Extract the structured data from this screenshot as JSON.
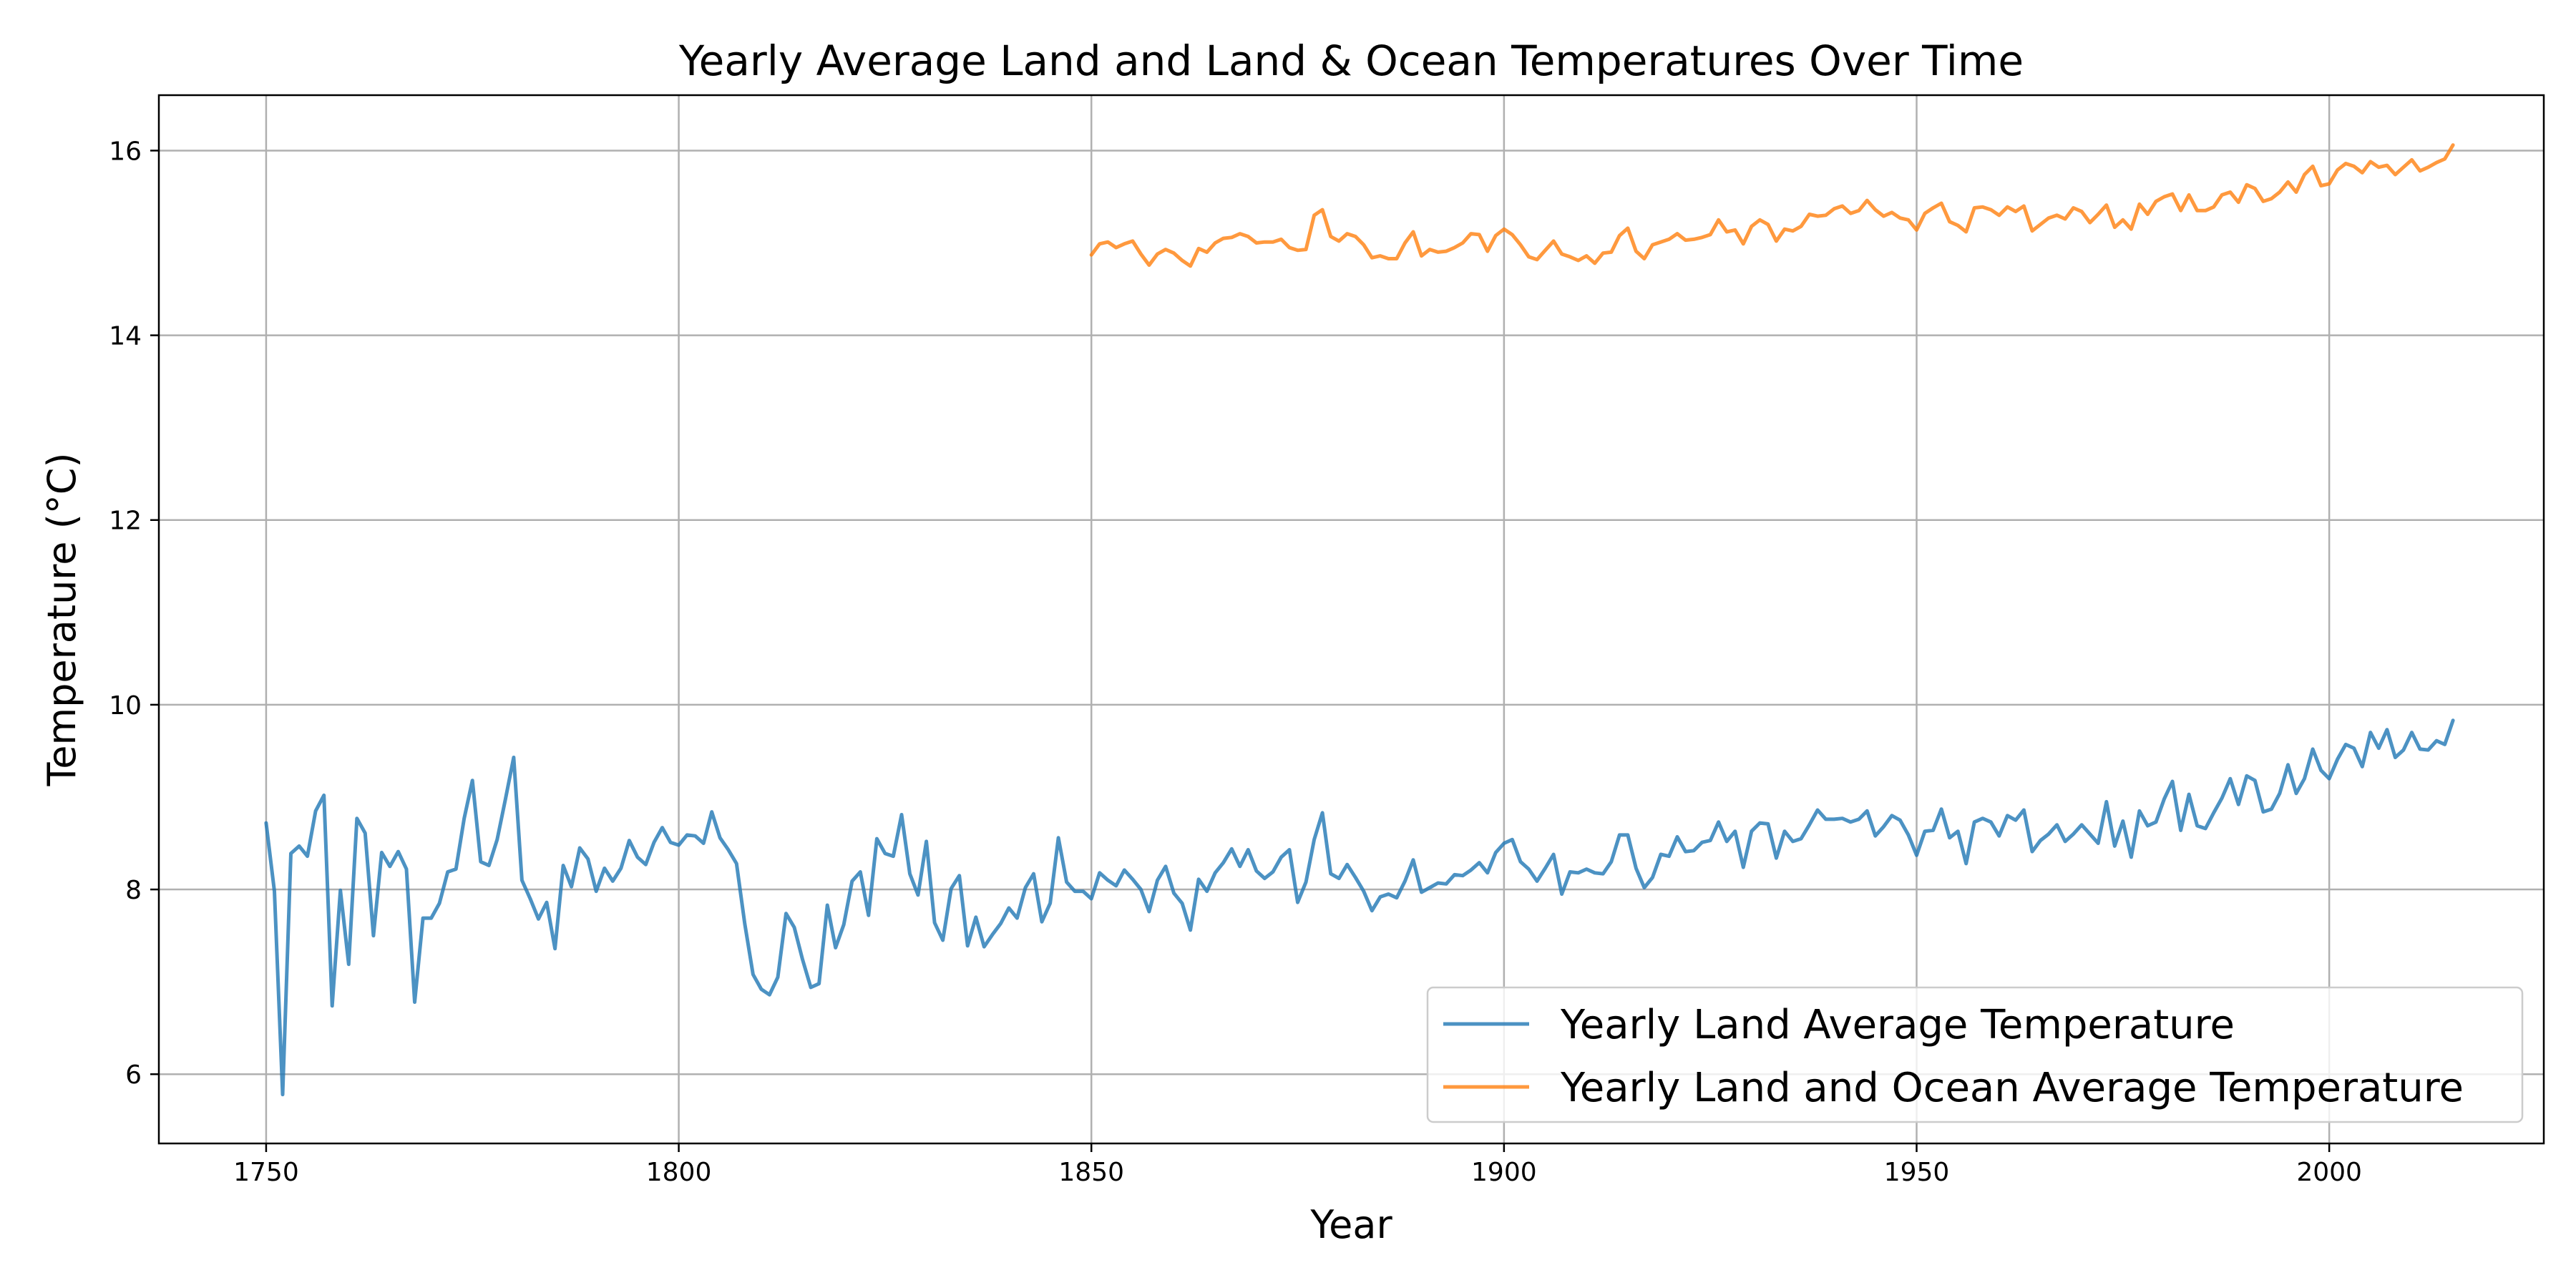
{
  "chart_data": {
    "type": "line",
    "title": "Yearly Average Land and Land & Ocean Temperatures Over Time",
    "xlabel": "Year",
    "ylabel": "Temperature (°C)",
    "xlim": [
      1737,
      2026
    ],
    "ylim": [
      5.25,
      16.6
    ],
    "xticks": [
      1750,
      1800,
      1850,
      1900,
      1950,
      2000
    ],
    "yticks": [
      6,
      8,
      10,
      12,
      14,
      16
    ],
    "grid": true,
    "legend_position": "lower-right",
    "colors": {
      "land": "#1f77b4",
      "land_ocean": "#ff7f0e"
    },
    "series": [
      {
        "name": "Yearly Land Average Temperature",
        "color": "#1f77b4",
        "x_start": 1750,
        "values": [
          8.72,
          7.98,
          5.78,
          8.39,
          8.47,
          8.36,
          8.85,
          9.02,
          6.74,
          7.99,
          7.19,
          8.77,
          8.61,
          7.5,
          8.4,
          8.25,
          8.41,
          8.22,
          6.78,
          7.69,
          7.69,
          7.85,
          8.19,
          8.22,
          8.77,
          9.18,
          8.3,
          8.26,
          8.54,
          8.98,
          9.43,
          8.1,
          7.9,
          7.68,
          7.86,
          7.36,
          8.26,
          8.03,
          8.45,
          8.33,
          7.98,
          8.23,
          8.09,
          8.23,
          8.53,
          8.35,
          8.27,
          8.51,
          8.67,
          8.51,
          8.48,
          8.59,
          8.58,
          8.5,
          8.84,
          8.56,
          8.43,
          8.28,
          7.63,
          7.08,
          6.92,
          6.86,
          7.05,
          7.74,
          7.59,
          7.24,
          6.94,
          6.98,
          7.83,
          7.37,
          7.62,
          8.09,
          8.19,
          7.72,
          8.55,
          8.39,
          8.36,
          8.81,
          8.17,
          7.94,
          8.52,
          7.64,
          7.45,
          8.01,
          8.15,
          7.39,
          7.7,
          7.38,
          7.51,
          7.63,
          7.8,
          7.69,
          8.02,
          8.17,
          7.65,
          7.85,
          8.56,
          8.08,
          7.98,
          7.98,
          7.9,
          8.18,
          8.1,
          8.04,
          8.21,
          8.11,
          8.0,
          7.76,
          8.1,
          8.25,
          7.96,
          7.85,
          7.56,
          8.11,
          7.98,
          8.18,
          8.29,
          8.44,
          8.25,
          8.43,
          8.2,
          8.12,
          8.19,
          8.35,
          8.43,
          7.86,
          8.08,
          8.54,
          8.83,
          8.17,
          8.12,
          8.27,
          8.13,
          7.98,
          7.77,
          7.92,
          7.95,
          7.91,
          8.09,
          8.32,
          7.97,
          8.02,
          8.07,
          8.06,
          8.16,
          8.15,
          8.21,
          8.29,
          8.18,
          8.4,
          8.5,
          8.54,
          8.3,
          8.22,
          8.09,
          8.23,
          8.38,
          7.95,
          8.19,
          8.18,
          8.22,
          8.18,
          8.17,
          8.3,
          8.59,
          8.59,
          8.23,
          8.02,
          8.13,
          8.38,
          8.36,
          8.57,
          8.41,
          8.42,
          8.51,
          8.53,
          8.73,
          8.52,
          8.63,
          8.24,
          8.63,
          8.72,
          8.71,
          8.34,
          8.63,
          8.52,
          8.55,
          8.7,
          8.86,
          8.76,
          8.76,
          8.77,
          8.73,
          8.76,
          8.85,
          8.58,
          8.68,
          8.8,
          8.75,
          8.59,
          8.37,
          8.63,
          8.64,
          8.87,
          8.56,
          8.63,
          8.28,
          8.73,
          8.77,
          8.73,
          8.58,
          8.8,
          8.75,
          8.86,
          8.41,
          8.53,
          8.6,
          8.7,
          8.52,
          8.6,
          8.7,
          8.6,
          8.5,
          8.95,
          8.47,
          8.74,
          8.35,
          8.85,
          8.69,
          8.73,
          8.98,
          9.17,
          8.64,
          9.03,
          8.69,
          8.66,
          8.83,
          8.99,
          9.2,
          8.92,
          9.23,
          9.18,
          8.84,
          8.87,
          9.04,
          9.35,
          9.04,
          9.2,
          9.52,
          9.29,
          9.2,
          9.41,
          9.57,
          9.53,
          9.33,
          9.7,
          9.53,
          9.73,
          9.43,
          9.51,
          9.7,
          9.52,
          9.51,
          9.61,
          9.57,
          9.83
        ]
      },
      {
        "name": "Yearly Land and Ocean Average Temperature",
        "color": "#ff7f0e",
        "x_start": 1850,
        "values": [
          14.87,
          14.99,
          15.01,
          14.95,
          14.99,
          15.02,
          14.88,
          14.76,
          14.88,
          14.93,
          14.89,
          14.81,
          14.75,
          14.94,
          14.9,
          15.0,
          15.05,
          15.06,
          15.1,
          15.07,
          15.0,
          15.01,
          15.01,
          15.04,
          14.95,
          14.92,
          14.93,
          15.3,
          15.36,
          15.07,
          15.02,
          15.1,
          15.07,
          14.98,
          14.84,
          14.86,
          14.83,
          14.83,
          15.0,
          15.12,
          14.86,
          14.93,
          14.9,
          14.91,
          14.95,
          15.0,
          15.1,
          15.09,
          14.91,
          15.08,
          15.15,
          15.09,
          14.98,
          14.85,
          14.82,
          14.92,
          15.02,
          14.88,
          14.85,
          14.81,
          14.86,
          14.78,
          14.89,
          14.9,
          15.08,
          15.16,
          14.91,
          14.83,
          14.98,
          15.01,
          15.04,
          15.1,
          15.03,
          15.04,
          15.06,
          15.09,
          15.25,
          15.12,
          15.14,
          14.99,
          15.18,
          15.25,
          15.2,
          15.02,
          15.15,
          15.13,
          15.18,
          15.31,
          15.29,
          15.3,
          15.37,
          15.4,
          15.32,
          15.35,
          15.46,
          15.36,
          15.29,
          15.33,
          15.27,
          15.25,
          15.14,
          15.32,
          15.38,
          15.43,
          15.23,
          15.19,
          15.12,
          15.38,
          15.39,
          15.36,
          15.3,
          15.39,
          15.34,
          15.4,
          15.13,
          15.2,
          15.27,
          15.3,
          15.26,
          15.38,
          15.34,
          15.22,
          15.31,
          15.41,
          15.17,
          15.25,
          15.15,
          15.42,
          15.31,
          15.45,
          15.5,
          15.53,
          15.35,
          15.52,
          15.35,
          15.35,
          15.39,
          15.52,
          15.55,
          15.44,
          15.63,
          15.59,
          15.45,
          15.48,
          15.55,
          15.66,
          15.55,
          15.74,
          15.83,
          15.62,
          15.64,
          15.79,
          15.86,
          15.83,
          15.76,
          15.88,
          15.82,
          15.84,
          15.74,
          15.82,
          15.9,
          15.78,
          15.82,
          15.87,
          15.91,
          16.06
        ]
      }
    ]
  }
}
